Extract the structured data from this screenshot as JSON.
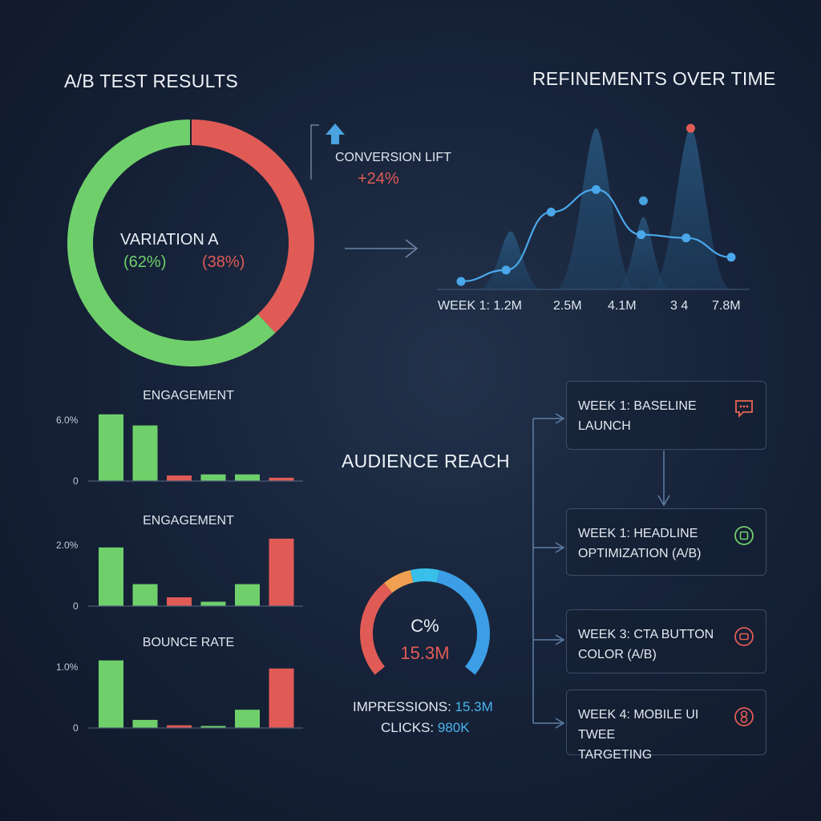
{
  "ab_test": {
    "title": "A/B TEST RESULTS",
    "center_label": "VARIATION A",
    "pct_a": "(62%)",
    "pct_b": "(38%)",
    "colors": {
      "a": "#6fd06b",
      "b": "#e15b56"
    }
  },
  "conversion": {
    "label": "CONVERSION LIFT",
    "value": "+24%"
  },
  "refinements": {
    "title": "REFINEMENTS OVER TIME"
  },
  "audience": {
    "title": "AUDIENCE REACH",
    "gauge_label": "C%",
    "gauge_value": "15.3M",
    "impressions_label": "IMPRESSIONS:",
    "impressions_value": "15.3M",
    "clicks_label": "CLICKS:",
    "clicks_value": "980K"
  },
  "timeline": [
    {
      "text": "WEEK 1: BASELINE\nLAUNCH",
      "icon": "chat-icon",
      "color": "#e8664f"
    },
    {
      "text": "WEEK 1: HEADLINE\nOPTIMIZATION (A/B)",
      "icon": "square-badge-icon",
      "color": "#6fd06b"
    },
    {
      "text": "WEEK 3: CTA BUTTON\nCOLOR (A/B)",
      "icon": "button-icon",
      "color": "#e15b56"
    },
    {
      "text": "WEEK 4: MOBILE UI TWEE\nTARGETING",
      "icon": "infinity-icon",
      "color": "#e15b56"
    }
  ],
  "chart_data": [
    {
      "type": "pie",
      "title": "A/B TEST RESULTS",
      "categories": [
        "VARIATION A",
        ""
      ],
      "values": [
        62,
        38
      ],
      "colors": [
        "#6fd06b",
        "#e15b56"
      ]
    },
    {
      "type": "line",
      "title": "REFINEMENTS OVER TIME",
      "tick_labels": [
        "WEEK 1: 1.2M",
        "2.5M",
        "4.1M",
        "3 4",
        "7.8M"
      ],
      "series": [
        {
          "values": [
            0.05,
            0.12,
            0.48,
            0.62,
            0.34,
            0.32,
            0.2
          ],
          "markers_x": [
            0,
            1,
            2,
            3,
            4,
            5,
            6
          ]
        }
      ],
      "extra_points": [
        {
          "x": 4.05,
          "y": 0.55,
          "color": "#4aa3e0"
        },
        {
          "x": 5.1,
          "y": 1.0,
          "color": "#e15b56"
        }
      ],
      "background_peaks": [
        {
          "x": 1.1,
          "height": 0.36,
          "width": 0.35
        },
        {
          "x": 3.0,
          "height": 1.0,
          "width": 0.45
        },
        {
          "x": 4.05,
          "height": 0.45,
          "width": 0.3
        },
        {
          "x": 5.1,
          "height": 1.0,
          "width": 0.45
        }
      ],
      "ylim": [
        0,
        1.05
      ]
    },
    {
      "type": "bar",
      "title": "ENGAGEMENT",
      "yticks": [
        "6.0%",
        "0"
      ],
      "values": [
        6.0,
        5.0,
        0.5,
        0.6,
        0.6,
        0.3
      ],
      "colors": [
        "#6fd06b",
        "#6fd06b",
        "#e15b56",
        "#6fd06b",
        "#6fd06b",
        "#e15b56"
      ],
      "ylim": [
        0,
        6.2
      ]
    },
    {
      "type": "bar",
      "title": "ENGAGEMENT",
      "yticks": [
        "2.0%",
        "0"
      ],
      "values": [
        2.0,
        0.75,
        0.3,
        0.15,
        0.75,
        2.3
      ],
      "colors": [
        "#6fd06b",
        "#6fd06b",
        "#e15b56",
        "#6fd06b",
        "#6fd06b",
        "#e15b56"
      ],
      "ylim": [
        0,
        2.35
      ]
    },
    {
      "type": "bar",
      "title": "BOUNCE RATE",
      "yticks": [
        "1.0%",
        "0"
      ],
      "values": [
        1.0,
        0.12,
        0.04,
        0.03,
        0.27,
        0.88
      ],
      "colors": [
        "#6fd06b",
        "#6fd06b",
        "#e15b56",
        "#6fd06b",
        "#6fd06b",
        "#e15b56"
      ],
      "ylim": [
        0,
        1.02
      ]
    },
    {
      "type": "gauge",
      "title": "AUDIENCE REACH",
      "segments": [
        {
          "value": 35,
          "color": "#e15b56"
        },
        {
          "value": 10,
          "color": "#f0a050"
        },
        {
          "value": 10,
          "color": "#38c0ea"
        },
        {
          "value": 45,
          "color": "#3b9ee6"
        }
      ]
    }
  ]
}
